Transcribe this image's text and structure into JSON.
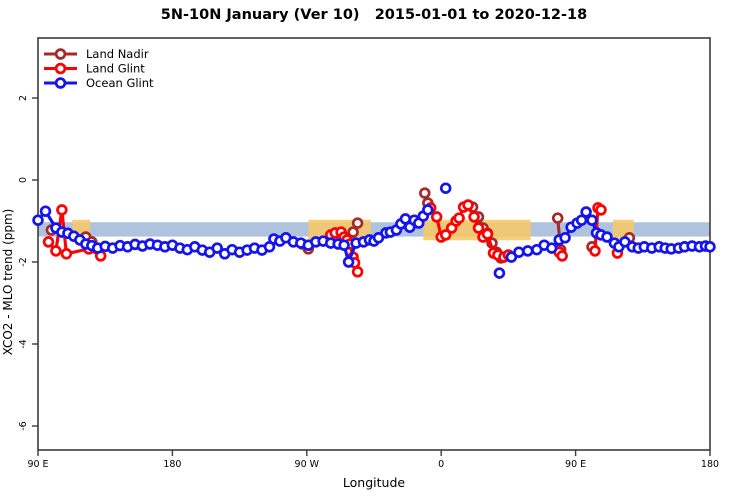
{
  "header": {
    "title": "5N-10N January (Ver 10)   2015-01-01 to 2020-12-18"
  },
  "chart_data": {
    "type": "line",
    "title": "5N-10N January (Ver 10)   2015-01-01 to 2020-12-18",
    "xlabel": "Longitude",
    "ylabel": "XCO2 - MLO trend (ppm)",
    "x_axis": {
      "note": "axis position in degrees east of 90E; axis spans 450 degrees wrapping past 90E a second time",
      "range": [
        0,
        450
      ],
      "ticks": [
        {
          "pos": 0,
          "label": "90 E"
        },
        {
          "pos": 90,
          "label": "180"
        },
        {
          "pos": 180,
          "label": "90 W"
        },
        {
          "pos": 270,
          "label": "0"
        },
        {
          "pos": 360,
          "label": "90 E"
        },
        {
          "pos": 450,
          "label": "180"
        }
      ]
    },
    "y_axis": {
      "range": [
        3.46,
        -6.59
      ],
      "ticks": [
        {
          "value": 2,
          "label": "2"
        },
        {
          "value": 0,
          "label": "0"
        },
        {
          "value": -2,
          "label": "-2"
        },
        {
          "value": -4,
          "label": "-4"
        },
        {
          "value": -6,
          "label": "-6"
        }
      ]
    },
    "reference_bands": {
      "blue": {
        "color": "#AFC3DF",
        "value_range": [
          -1.38,
          -1.03
        ],
        "x_range": [
          0,
          450
        ]
      },
      "yellow": {
        "color": "#F6C96B",
        "opacity": 0.9,
        "value_range": [
          -1.47,
          -0.97
        ],
        "segments": [
          [
            23,
            35
          ],
          [
            181,
            223
          ],
          [
            258,
            330
          ],
          [
            385,
            399
          ]
        ]
      }
    },
    "legend": {
      "position": "top-left",
      "entries": [
        "Land Nadir",
        "Land Glint",
        "Ocean Glint"
      ]
    },
    "series": [
      {
        "id": "land-nadir",
        "name": "Land Nadir",
        "color": "#A52A2A",
        "segments": [
          [
            [
              9,
              -1.22
            ]
          ],
          [
            [
              32,
              -1.39
            ],
            [
              36,
              -1.51
            ]
          ],
          [
            [
              177,
              -1.56
            ],
            [
              181,
              -1.68
            ]
          ],
          [
            [
              211,
              -1.27
            ],
            [
              214,
              -1.05
            ]
          ],
          [
            [
              259,
              -0.32
            ],
            [
              261,
              -0.56
            ]
          ],
          [
            [
              291,
              -0.66
            ],
            [
              295,
              -0.9
            ],
            [
              298,
              -1.17
            ],
            [
              301,
              -1.3
            ],
            [
              304,
              -1.54
            ],
            [
              307,
              -1.76
            ],
            [
              310,
              -1.9
            ]
          ],
          [
            [
              348,
              -0.93
            ],
            [
              350,
              -1.7
            ]
          ],
          [
            [
              371,
              -1.63
            ]
          ],
          [
            [
              396,
              -1.41
            ]
          ]
        ]
      },
      {
        "id": "land-glint",
        "name": "Land Glint",
        "color": "#FE0000",
        "segments": [
          [
            [
              7,
              -1.51
            ],
            [
              12,
              -1.73
            ],
            [
              16,
              -0.73
            ],
            [
              19,
              -1.8
            ],
            [
              34,
              -1.68
            ],
            [
              42,
              -1.85
            ]
          ],
          [
            [
              196,
              -1.34
            ],
            [
              199,
              -1.29
            ],
            [
              203,
              -1.27
            ],
            [
              205,
              -1.39
            ],
            [
              207,
              -1.46
            ],
            [
              209,
              -1.56
            ],
            [
              211,
              -1.88
            ],
            [
              212,
              -2.02
            ],
            [
              214,
              -2.24
            ]
          ],
          [
            [
              263,
              -0.68
            ],
            [
              267,
              -0.9
            ],
            [
              270,
              -1.39
            ],
            [
              273,
              -1.34
            ],
            [
              277,
              -1.17
            ],
            [
              280,
              -1.0
            ],
            [
              282,
              -0.93
            ],
            [
              285,
              -0.66
            ],
            [
              288,
              -0.61
            ],
            [
              292,
              -0.9
            ],
            [
              295,
              -1.17
            ],
            [
              298,
              -1.39
            ],
            [
              301,
              -1.32
            ],
            [
              305,
              -1.78
            ],
            [
              308,
              -1.83
            ],
            [
              312,
              -1.88
            ],
            [
              315,
              -1.83
            ]
          ],
          [
            [
              349,
              -1.76
            ],
            [
              351,
              -1.85
            ]
          ],
          [
            [
              373,
              -1.73
            ],
            [
              375,
              -0.68
            ],
            [
              377,
              -0.73
            ]
          ],
          [
            [
              388,
              -1.78
            ]
          ]
        ]
      },
      {
        "id": "ocean-glint",
        "name": "Ocean Glint",
        "color": "#1414F0",
        "segments": [
          [
            [
              0,
              -0.98
            ],
            [
              5,
              -0.76
            ],
            [
              12,
              -1.17
            ],
            [
              16,
              -1.27
            ],
            [
              20,
              -1.3
            ],
            [
              24,
              -1.37
            ],
            [
              28,
              -1.46
            ],
            [
              32,
              -1.56
            ],
            [
              36,
              -1.6
            ],
            [
              40,
              -1.66
            ],
            [
              45,
              -1.62
            ],
            [
              50,
              -1.66
            ],
            [
              55,
              -1.6
            ],
            [
              60,
              -1.63
            ],
            [
              65,
              -1.57
            ],
            [
              70,
              -1.61
            ],
            [
              75,
              -1.56
            ],
            [
              80,
              -1.59
            ],
            [
              85,
              -1.63
            ],
            [
              90,
              -1.59
            ],
            [
              95,
              -1.66
            ],
            [
              100,
              -1.7
            ],
            [
              105,
              -1.63
            ],
            [
              110,
              -1.71
            ],
            [
              115,
              -1.76
            ],
            [
              120,
              -1.66
            ],
            [
              125,
              -1.8
            ],
            [
              130,
              -1.7
            ],
            [
              135,
              -1.76
            ],
            [
              140,
              -1.71
            ],
            [
              145,
              -1.66
            ],
            [
              150,
              -1.71
            ],
            [
              155,
              -1.63
            ],
            [
              158,
              -1.44
            ],
            [
              162,
              -1.49
            ],
            [
              166,
              -1.41
            ],
            [
              171,
              -1.51
            ],
            [
              176,
              -1.54
            ],
            [
              181,
              -1.59
            ],
            [
              186,
              -1.51
            ],
            [
              191,
              -1.49
            ],
            [
              196,
              -1.54
            ],
            [
              201,
              -1.56
            ],
            [
              205,
              -1.59
            ],
            [
              208,
              -2.0
            ],
            [
              213,
              -1.54
            ],
            [
              218,
              -1.51
            ],
            [
              222,
              -1.46
            ],
            [
              225,
              -1.49
            ],
            [
              228,
              -1.41
            ],
            [
              233,
              -1.29
            ],
            [
              236,
              -1.27
            ],
            [
              240,
              -1.22
            ],
            [
              243,
              -1.07
            ],
            [
              246,
              -0.95
            ],
            [
              249,
              -1.15
            ],
            [
              252,
              -0.98
            ],
            [
              255,
              -1.05
            ],
            [
              258,
              -0.88
            ],
            [
              261,
              -0.73
            ]
          ],
          [
            [
              273,
              -0.2
            ]
          ],
          [
            [
              309,
              -2.27
            ]
          ],
          [
            [
              317,
              -1.88
            ],
            [
              322,
              -1.76
            ],
            [
              328,
              -1.73
            ],
            [
              334,
              -1.7
            ],
            [
              339,
              -1.59
            ],
            [
              344,
              -1.66
            ],
            [
              349,
              -1.46
            ],
            [
              353,
              -1.41
            ],
            [
              357,
              -1.15
            ],
            [
              361,
              -1.05
            ],
            [
              364,
              -0.98
            ],
            [
              367,
              -0.78
            ],
            [
              371,
              -0.98
            ],
            [
              374,
              -1.29
            ],
            [
              377,
              -1.34
            ],
            [
              381,
              -1.39
            ],
            [
              386,
              -1.54
            ],
            [
              389,
              -1.63
            ],
            [
              393,
              -1.51
            ],
            [
              398,
              -1.63
            ],
            [
              402,
              -1.66
            ],
            [
              406,
              -1.63
            ],
            [
              411,
              -1.66
            ],
            [
              416,
              -1.63
            ],
            [
              420,
              -1.66
            ],
            [
              424,
              -1.68
            ],
            [
              429,
              -1.66
            ],
            [
              433,
              -1.63
            ],
            [
              438,
              -1.61
            ],
            [
              443,
              -1.63
            ],
            [
              447,
              -1.61
            ],
            [
              450,
              -1.63
            ]
          ]
        ]
      }
    ]
  }
}
